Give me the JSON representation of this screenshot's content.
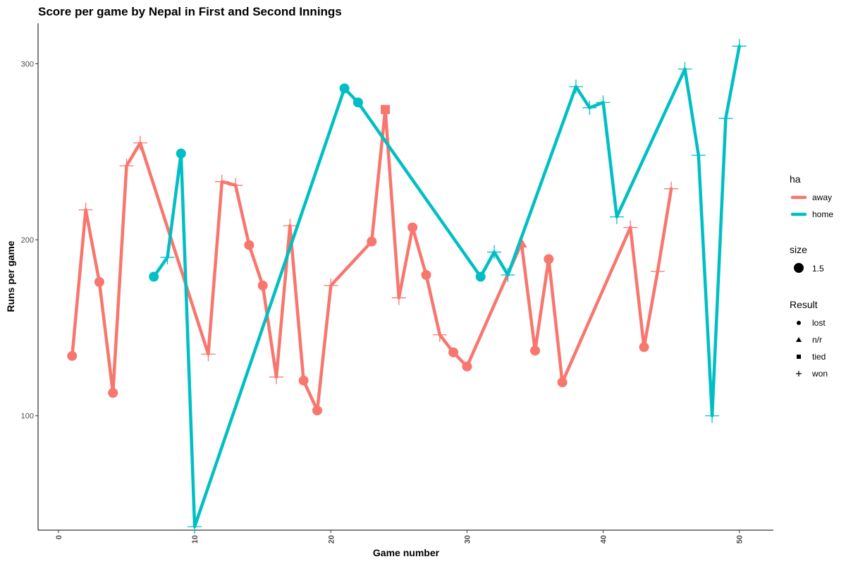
{
  "chart_data": {
    "type": "line",
    "title": "Score per game by Nepal in First and Second Innings",
    "xlabel": "Game number",
    "ylabel": "Runs per game",
    "xlim": [
      -1.5,
      52.5
    ],
    "ylim": [
      35,
      323
    ],
    "x_ticks": [
      0,
      10,
      20,
      30,
      40,
      50
    ],
    "y_ticks": [
      100,
      200,
      300
    ],
    "grid": false,
    "legend_position": "right",
    "legend": {
      "ha_title": "ha",
      "size_title": "size",
      "size_label": "1.5",
      "result_title": "Result"
    },
    "series": [
      {
        "name": "away",
        "color": "#F8766D",
        "points": [
          {
            "x": 1,
            "y": 134,
            "result": "lost"
          },
          {
            "x": 2,
            "y": 217,
            "result": "won"
          },
          {
            "x": 3,
            "y": 176,
            "result": "lost"
          },
          {
            "x": 4,
            "y": 113,
            "result": "lost"
          },
          {
            "x": 5,
            "y": 242,
            "result": "won"
          },
          {
            "x": 6,
            "y": 255,
            "result": "won"
          },
          {
            "x": 11,
            "y": 135,
            "result": "won"
          },
          {
            "x": 12,
            "y": 233,
            "result": "won"
          },
          {
            "x": 13,
            "y": 231,
            "result": "won"
          },
          {
            "x": 14,
            "y": 197,
            "result": "lost"
          },
          {
            "x": 15,
            "y": 174,
            "result": "lost"
          },
          {
            "x": 16,
            "y": 122,
            "result": "won"
          },
          {
            "x": 17,
            "y": 208,
            "result": "won"
          },
          {
            "x": 18,
            "y": 120,
            "result": "lost"
          },
          {
            "x": 19,
            "y": 103,
            "result": "lost"
          },
          {
            "x": 20,
            "y": 174,
            "result": "won"
          },
          {
            "x": 23,
            "y": 199,
            "result": "lost"
          },
          {
            "x": 24,
            "y": 274,
            "result": "tied"
          },
          {
            "x": 25,
            "y": 167,
            "result": "won"
          },
          {
            "x": 26,
            "y": 207,
            "result": "lost"
          },
          {
            "x": 27,
            "y": 180,
            "result": "lost"
          },
          {
            "x": 28,
            "y": 146,
            "result": "won"
          },
          {
            "x": 29,
            "y": 136,
            "result": "lost"
          },
          {
            "x": 30,
            "y": 128,
            "result": "lost"
          },
          {
            "x": 34,
            "y": 198,
            "result": "n/r"
          },
          {
            "x": 35,
            "y": 137,
            "result": "lost"
          },
          {
            "x": 36,
            "y": 189,
            "result": "lost"
          },
          {
            "x": 37,
            "y": 119,
            "result": "lost"
          },
          {
            "x": 42,
            "y": 207,
            "result": "won"
          },
          {
            "x": 43,
            "y": 139,
            "result": "lost"
          },
          {
            "x": 44,
            "y": 182,
            "result": "won"
          },
          {
            "x": 45,
            "y": 229,
            "result": "won"
          }
        ]
      },
      {
        "name": "home",
        "color": "#00BFC4",
        "points": [
          {
            "x": 7,
            "y": 179,
            "result": "lost"
          },
          {
            "x": 8,
            "y": 190,
            "result": "won"
          },
          {
            "x": 9,
            "y": 249,
            "result": "lost"
          },
          {
            "x": 10,
            "y": 37,
            "result": "won"
          },
          {
            "x": 21,
            "y": 286,
            "result": "lost"
          },
          {
            "x": 22,
            "y": 278,
            "result": "lost"
          },
          {
            "x": 31,
            "y": 179,
            "result": "lost"
          },
          {
            "x": 32,
            "y": 193,
            "result": "won"
          },
          {
            "x": 33,
            "y": 180,
            "result": "won"
          },
          {
            "x": 38,
            "y": 287,
            "result": "won"
          },
          {
            "x": 39,
            "y": 275,
            "result": "won"
          },
          {
            "x": 40,
            "y": 278,
            "result": "won"
          },
          {
            "x": 41,
            "y": 213,
            "result": "won"
          },
          {
            "x": 46,
            "y": 297,
            "result": "won"
          },
          {
            "x": 47,
            "y": 248,
            "result": "won"
          },
          {
            "x": 48,
            "y": 100,
            "result": "won"
          },
          {
            "x": 49,
            "y": 269,
            "result": "won"
          },
          {
            "x": 50,
            "y": 310,
            "result": "won"
          }
        ]
      }
    ],
    "result_categories": [
      {
        "label": "lost",
        "shape": "circle"
      },
      {
        "label": "n/r",
        "shape": "triangle"
      },
      {
        "label": "tied",
        "shape": "square"
      },
      {
        "label": "won",
        "shape": "plus"
      }
    ]
  }
}
